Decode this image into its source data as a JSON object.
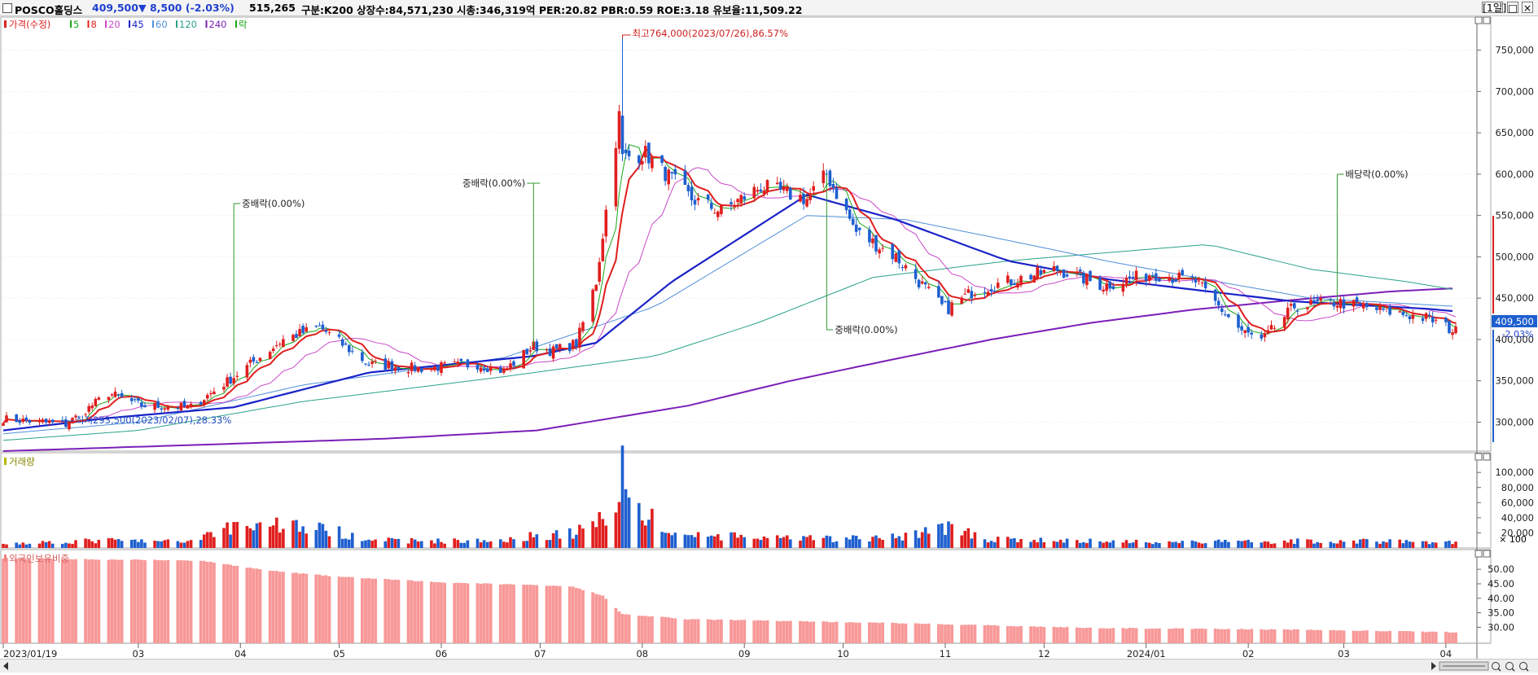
{
  "header": {
    "stock_name": "POSCO홀딩스",
    "price": "409,500",
    "change": "▼ 8,500 (-2.03%)",
    "volume": "515,265",
    "info": "구분:K200  상장수:84,571,230  시총:346,319억  PER:20.82  PBR:0.59  ROE:3.18  유보율:11,509.22",
    "period_button": "[1일]",
    "colors": {
      "up": "#e01e1e",
      "down": "#1e5fcf",
      "change": "#1e3fcf"
    }
  },
  "legend": {
    "price_label": "가격(수정)",
    "ma_items": [
      {
        "label": "5",
        "color": "#19a619"
      },
      {
        "label": "8",
        "color": "#e01e1e"
      },
      {
        "label": "20",
        "color": "#c848c8"
      },
      {
        "label": "45",
        "color": "#1a22c8"
      },
      {
        "label": "60",
        "color": "#5090d8"
      },
      {
        "label": "120",
        "color": "#2aa28a"
      },
      {
        "label": "240",
        "color": "#7a1fb8"
      }
    ],
    "event_label": "락",
    "volume_label": "거래량",
    "foreign_label": "외국인보유비중"
  },
  "annotations": {
    "high": "최고764,000(2023/07/26),86.57%",
    "low": "최저293,500(2023/02/07),28.33%",
    "events": [
      {
        "label": "중배락(0.00%)",
        "date": "2023/03/30"
      },
      {
        "label": "중배락(0.00%)",
        "date": "2023/06/29"
      },
      {
        "label": "중배락(0.00%)",
        "date": "2023/09/26"
      },
      {
        "label": "배당락(0.00%)",
        "date": "2024/02/28"
      }
    ]
  },
  "price_axis": {
    "ticks": [
      "750,000",
      "700,000",
      "650,000",
      "600,000",
      "550,000",
      "500,000",
      "450,000",
      "400,000",
      "350,000",
      "300,000"
    ],
    "current_label": "409,500",
    "current_change": "-2.03%"
  },
  "volume_axis": {
    "ticks": [
      "100,000",
      "80,000",
      "60,000",
      "40,000",
      "20,000"
    ],
    "unit": "× 100"
  },
  "foreign_axis": {
    "ticks": [
      "50.00",
      "45.00",
      "40.00",
      "35.00",
      "30.00"
    ]
  },
  "x_axis": {
    "labels": [
      "2023/01/19",
      "03",
      "04",
      "05",
      "06",
      "07",
      "08",
      "09",
      "10",
      "11",
      "12",
      "2024/01",
      "02",
      "03",
      "04"
    ]
  },
  "chart_data": {
    "type": "candlestick",
    "x_range": [
      "2023/01/19",
      "2024/04/04"
    ],
    "price_ylim": [
      265000,
      790000
    ],
    "volume_ylim": [
      0,
      125000
    ],
    "foreign_ylim": [
      24.5,
      56.5
    ],
    "anchors": {
      "close": [
        [
          "2023/01/19",
          304000
        ],
        [
          "2023/02/07",
          297000
        ],
        [
          "2023/02/20",
          335000
        ],
        [
          "2023/03/02",
          320000
        ],
        [
          "2023/03/17",
          318000
        ],
        [
          "2023/03/30",
          355000
        ],
        [
          "2023/04/14",
          400000
        ],
        [
          "2023/04/25",
          415000
        ],
        [
          "2023/05/10",
          370000
        ],
        [
          "2023/05/25",
          365000
        ],
        [
          "2023/06/12",
          370000
        ],
        [
          "2023/06/20",
          362000
        ],
        [
          "2023/06/29",
          392000
        ],
        [
          "2023/07/05",
          386000
        ],
        [
          "2023/07/12",
          395000
        ],
        [
          "2023/07/18",
          470000
        ],
        [
          "2023/07/25",
          670000
        ],
        [
          "2023/07/26",
          620000
        ],
        [
          "2023/08/02",
          625000
        ],
        [
          "2023/08/16",
          570000
        ],
        [
          "2023/08/25",
          555000
        ],
        [
          "2023/09/06",
          585000
        ],
        [
          "2023/09/20",
          570000
        ],
        [
          "2023/09/26",
          600000
        ],
        [
          "2023/10/05",
          530000
        ],
        [
          "2023/10/17",
          500000
        ],
        [
          "2023/10/31",
          440000
        ],
        [
          "2023/11/02",
          438000
        ],
        [
          "2023/11/10",
          460000
        ],
        [
          "2023/11/20",
          470000
        ],
        [
          "2023/12/05",
          485000
        ],
        [
          "2023/12/19",
          465000
        ],
        [
          "2024/01/03",
          480000
        ],
        [
          "2024/01/16",
          470000
        ],
        [
          "2024/01/30",
          410000
        ],
        [
          "2024/02/05",
          398000
        ],
        [
          "2024/02/15",
          440000
        ],
        [
          "2024/02/28",
          445000
        ],
        [
          "2024/03/13",
          435000
        ],
        [
          "2024/03/27",
          425000
        ],
        [
          "2024/04/04",
          409500
        ]
      ],
      "ma45": [
        [
          "2023/01/19",
          290000
        ],
        [
          "2023/02/20",
          305000
        ],
        [
          "2023/03/30",
          318000
        ],
        [
          "2023/05/10",
          360000
        ],
        [
          "2023/06/29",
          380000
        ],
        [
          "2023/07/18",
          396000
        ],
        [
          "2023/08/10",
          470000
        ],
        [
          "2023/09/20",
          575000
        ],
        [
          "2023/10/17",
          545000
        ],
        [
          "2023/11/20",
          495000
        ],
        [
          "2023/12/20",
          473000
        ],
        [
          "2024/01/16",
          460000
        ],
        [
          "2024/02/15",
          446000
        ],
        [
          "2024/03/27",
          437000
        ],
        [
          "2024/04/04",
          434000
        ]
      ],
      "ma60": [
        [
          "2023/01/19",
          286000
        ],
        [
          "2023/03/01",
          300000
        ],
        [
          "2023/04/20",
          345000
        ],
        [
          "2023/06/20",
          378000
        ],
        [
          "2023/08/05",
          440000
        ],
        [
          "2023/09/20",
          550000
        ],
        [
          "2023/10/20",
          545000
        ],
        [
          "2023/11/20",
          520000
        ],
        [
          "2023/12/20",
          495000
        ],
        [
          "2024/01/20",
          472000
        ],
        [
          "2024/02/20",
          450000
        ],
        [
          "2024/04/04",
          440000
        ]
      ],
      "ma120": [
        [
          "2023/01/19",
          278000
        ],
        [
          "2023/03/01",
          290000
        ],
        [
          "2023/04/20",
          325000
        ],
        [
          "2023/06/20",
          355000
        ],
        [
          "2023/08/05",
          380000
        ],
        [
          "2023/09/05",
          420000
        ],
        [
          "2023/10/10",
          475000
        ],
        [
          "2023/11/20",
          495000
        ],
        [
          "2023/12/20",
          505000
        ],
        [
          "2024/01/20",
          515000
        ],
        [
          "2024/02/20",
          485000
        ],
        [
          "2024/03/20",
          470000
        ],
        [
          "2024/04/04",
          460000
        ]
      ],
      "ma240": [
        [
          "2023/01/19",
          265000
        ],
        [
          "2023/03/15",
          272000
        ],
        [
          "2023/05/15",
          280000
        ],
        [
          "2023/06/30",
          290000
        ],
        [
          "2023/08/15",
          320000
        ],
        [
          "2023/09/15",
          350000
        ],
        [
          "2023/10/15",
          375000
        ],
        [
          "2023/11/15",
          400000
        ],
        [
          "2023/12/15",
          420000
        ],
        [
          "2024/01/15",
          436000
        ],
        [
          "2024/02/15",
          448000
        ],
        [
          "2024/03/15",
          458000
        ],
        [
          "2024/04/04",
          462000
        ]
      ],
      "volume": [
        [
          "2023/01/19",
          6000
        ],
        [
          "2023/02/20",
          10000
        ],
        [
          "2023/03/15",
          8000
        ],
        [
          "2023/03/30",
          30000
        ],
        [
          "2023/04/14",
          32000
        ],
        [
          "2023/04/25",
          25000
        ],
        [
          "2023/05/15",
          10000
        ],
        [
          "2023/06/15",
          9000
        ],
        [
          "2023/06/29",
          16000
        ],
        [
          "2023/07/12",
          20000
        ],
        [
          "2023/07/20",
          40000
        ],
        [
          "2023/07/25",
          75000
        ],
        [
          "2023/07/26",
          120000
        ],
        [
          "2023/07/28",
          60000
        ],
        [
          "2023/08/10",
          18000
        ],
        [
          "2023/09/15",
          12000
        ],
        [
          "2023/10/15",
          13000
        ],
        [
          "2023/11/01",
          28000
        ],
        [
          "2023/11/15",
          11000
        ],
        [
          "2023/12/15",
          9000
        ],
        [
          "2024/01/15",
          8000
        ],
        [
          "2024/02/15",
          9000
        ],
        [
          "2024/03/15",
          9000
        ],
        [
          "2024/04/04",
          7000
        ]
      ],
      "foreign": [
        [
          "2023/01/19",
          53.8
        ],
        [
          "2023/03/20",
          53.0
        ],
        [
          "2023/04/10",
          49.5
        ],
        [
          "2023/04/30",
          47.5
        ],
        [
          "2023/06/01",
          45.5
        ],
        [
          "2023/07/10",
          44.2
        ],
        [
          "2023/07/20",
          41.0
        ],
        [
          "2023/07/26",
          34.5
        ],
        [
          "2023/08/15",
          32.8
        ],
        [
          "2023/10/15",
          31.5
        ],
        [
          "2023/12/15",
          29.8
        ],
        [
          "2024/02/15",
          29.2
        ],
        [
          "2024/04/04",
          28.3
        ]
      ]
    }
  }
}
